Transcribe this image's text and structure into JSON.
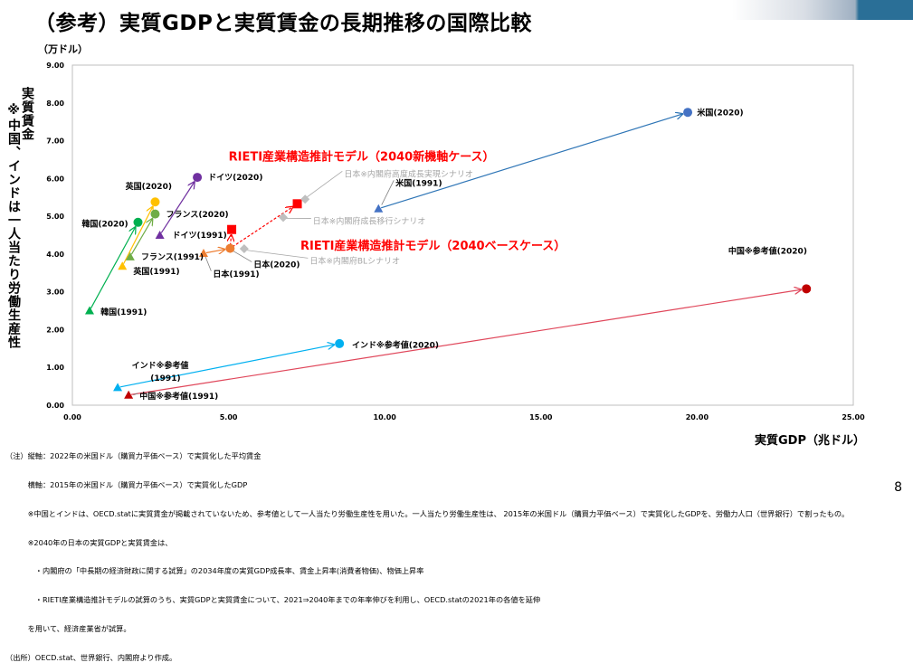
{
  "title": "（参考）実質GDPと実質賃金の長期推移の国際比較",
  "page_number": "8",
  "chart_data": {
    "type": "scatter",
    "xlabel": "実質GDP（兆ドル）",
    "ylabel_unit": "（万ドル）",
    "ylabel_vertical": [
      "実質賃金",
      "※中国、インドは一人当たり労働生産性"
    ],
    "xlim": [
      0,
      25
    ],
    "ylim": [
      0,
      9
    ],
    "xticks": [
      "0.00",
      "5.00",
      "10.00",
      "15.00",
      "20.00",
      "25.00"
    ],
    "yticks": [
      "0.00",
      "1.00",
      "2.00",
      "3.00",
      "4.00",
      "5.00",
      "6.00",
      "7.00",
      "8.00",
      "9.00"
    ],
    "grid": false,
    "points": [
      {
        "label": "米国(2020)",
        "x": 19.7,
        "y": 7.75,
        "marker": "circle",
        "color": "#4472c4"
      },
      {
        "label": "米国(1991)",
        "x": 9.8,
        "y": 5.2,
        "marker": "triangle",
        "color": "#4472c4"
      },
      {
        "label": "ドイツ(2020)",
        "x": 4.0,
        "y": 6.03,
        "marker": "circle",
        "color": "#7030a0"
      },
      {
        "label": "ドイツ(1991)",
        "x": 2.8,
        "y": 4.5,
        "marker": "triangle",
        "color": "#7030a0"
      },
      {
        "label": "英国(2020)",
        "x": 2.65,
        "y": 5.38,
        "marker": "circle",
        "color": "#ffc000"
      },
      {
        "label": "英国(1991)",
        "x": 1.6,
        "y": 3.68,
        "marker": "triangle",
        "color": "#ffc000"
      },
      {
        "label": "フランス(2020)",
        "x": 2.65,
        "y": 5.06,
        "marker": "circle",
        "color": "#70ad47"
      },
      {
        "label": "フランス(1991)",
        "x": 1.85,
        "y": 3.93,
        "marker": "triangle",
        "color": "#70ad47"
      },
      {
        "label": "韓国(2020)",
        "x": 2.1,
        "y": 4.84,
        "marker": "circle",
        "color": "#00b050"
      },
      {
        "label": "韓国(1991)",
        "x": 0.55,
        "y": 2.5,
        "marker": "triangle",
        "color": "#00b050"
      },
      {
        "label": "日本(2020)",
        "x": 5.05,
        "y": 4.15,
        "marker": "circle",
        "color": "#ed7d31"
      },
      {
        "label": "日本(1991)",
        "x": 4.2,
        "y": 4.02,
        "marker": "triangle",
        "color": "#ed7d31"
      },
      {
        "label": "中国※参考値(2020)",
        "x": 23.5,
        "y": 3.08,
        "marker": "circle",
        "color": "#c00000"
      },
      {
        "label": "中国※参考値(1991)",
        "x": 1.8,
        "y": 0.27,
        "marker": "triangle",
        "color": "#c00000"
      },
      {
        "label": "インド※参考値(2020)",
        "x": 8.55,
        "y": 1.63,
        "marker": "circle",
        "color": "#00b0f0"
      },
      {
        "label": "インド※参考値(1991)",
        "x": 1.45,
        "y": 0.47,
        "marker": "triangle",
        "color": "#00b0f0"
      },
      {
        "label": "RIETI産業構造推計モデル（2040新機軸ケース）",
        "x": 7.2,
        "y": 5.33,
        "marker": "square",
        "color": "#ff0000"
      },
      {
        "label": "RIETI産業構造推計モデル（2040ベースケース）",
        "x": 5.1,
        "y": 4.65,
        "marker": "square",
        "color": "#ff0000"
      },
      {
        "label": "日本※内閣府高度成長実現シナリオ",
        "x": 7.45,
        "y": 5.45,
        "marker": "diamond",
        "color": "#bfbfbf"
      },
      {
        "label": "日本※内閣府成長移行シナリオ",
        "x": 6.75,
        "y": 4.97,
        "marker": "diamond",
        "color": "#bfbfbf"
      },
      {
        "label": "日本※内閣府BLシナリオ",
        "x": 5.5,
        "y": 4.14,
        "marker": "diamond",
        "color": "#bfbfbf"
      }
    ],
    "arrows": [
      {
        "from": "米国(1991)",
        "to": "米国(2020)",
        "color": "#2e75b6"
      },
      {
        "from": "ドイツ(1991)",
        "to": "ドイツ(2020)",
        "color": "#7030a0"
      },
      {
        "from": "英国(1991)",
        "to": "英国(2020)",
        "color": "#ffc000"
      },
      {
        "from": "フランス(1991)",
        "to": "フランス(2020)",
        "color": "#70ad47"
      },
      {
        "from": "韓国(1991)",
        "to": "韓国(2020)",
        "color": "#00b050"
      },
      {
        "from": "日本(1991)",
        "to": "日本(2020)",
        "color": "#ed7d31"
      },
      {
        "from": "中国※参考値(1991)",
        "to": "中国※参考値(2020)",
        "color": "#e0475b"
      },
      {
        "from": "インド※参考値(1991)",
        "to": "インド※参考値(2020)",
        "color": "#00b0f0"
      },
      {
        "from": "日本(2020)",
        "to": "RIETI産業構造推計モデル（2040新機軸ケース）",
        "color": "#ff0000",
        "dashed": true
      },
      {
        "from": "日本(2020)",
        "to": "RIETI産業構造推計モデル（2040ベースケース）",
        "color": "#ff0000",
        "dashed": true
      }
    ],
    "labels": [
      {
        "text": "米国(2020)",
        "ax": 20.0,
        "ay": 7.75,
        "size": 9,
        "color": "#000000",
        "bold": true
      },
      {
        "text": "米国(1991)",
        "ax": 10.35,
        "ay": 5.88,
        "size": 9,
        "color": "#000000",
        "bold": true,
        "leader": [
          9.9,
          5.3
        ]
      },
      {
        "text": "ドイツ(2020)",
        "ax": 4.35,
        "ay": 6.03,
        "size": 9,
        "color": "#000000",
        "bold": true
      },
      {
        "text": "ドイツ(1991)",
        "ax": 3.2,
        "ay": 4.5,
        "size": 9,
        "color": "#000000",
        "bold": true
      },
      {
        "text": "英国(2020)",
        "ax": 1.7,
        "ay": 5.8,
        "size": 9,
        "color": "#000000",
        "bold": true
      },
      {
        "text": "英国(1991)",
        "ax": 1.95,
        "ay": 3.55,
        "size": 9,
        "color": "#000000",
        "bold": true
      },
      {
        "text": "フランス(2020)",
        "ax": 3.0,
        "ay": 5.06,
        "size": 9,
        "color": "#000000",
        "bold": true
      },
      {
        "text": "フランス(1991)",
        "ax": 2.2,
        "ay": 3.93,
        "size": 9,
        "color": "#000000",
        "bold": true
      },
      {
        "text": "韓国(2020)",
        "ax": 0.3,
        "ay": 4.8,
        "size": 9,
        "color": "#000000",
        "bold": true
      },
      {
        "text": "韓国(1991)",
        "ax": 0.9,
        "ay": 2.47,
        "size": 9,
        "color": "#000000",
        "bold": true
      },
      {
        "text": "日本(2020)",
        "ax": 5.8,
        "ay": 3.72,
        "size": 9,
        "color": "#000000",
        "bold": true,
        "leader": [
          5.15,
          4.08
        ]
      },
      {
        "text": "日本(1991)",
        "ax": 4.5,
        "ay": 3.48,
        "size": 9,
        "color": "#000000",
        "bold": true,
        "leader": [
          4.25,
          3.95
        ]
      },
      {
        "text": "中国※参考値(2020)",
        "ax": 21.0,
        "ay": 4.08,
        "size": 9,
        "color": "#000000",
        "bold": true
      },
      {
        "text": "中国※参考値(1991)",
        "ax": 2.15,
        "ay": 0.24,
        "size": 9,
        "color": "#000000",
        "bold": true,
        "leader": [
          1.95,
          0.27
        ]
      },
      {
        "text": "インド※参考値(2020)",
        "ax": 8.95,
        "ay": 1.6,
        "size": 9,
        "color": "#000000",
        "bold": true
      },
      {
        "text": "インド※参考値",
        "ax": 1.9,
        "ay": 1.06,
        "size": 9,
        "color": "#000000",
        "bold": true
      },
      {
        "text": "(1991)",
        "ax": 2.5,
        "ay": 0.72,
        "size": 9,
        "color": "#000000",
        "bold": true
      },
      {
        "text": "RIETI産業構造推計モデル（2040新機軸ケース）",
        "ax": 5.0,
        "ay": 6.58,
        "size": 13,
        "color": "#ff0000",
        "bold": true
      },
      {
        "text": "RIETI産業構造推計モデル（2040ベースケース）",
        "ax": 7.3,
        "ay": 4.22,
        "size": 13,
        "color": "#ff0000",
        "bold": true
      },
      {
        "text": "日本※内閣府高度成長実現シナリオ",
        "ax": 8.7,
        "ay": 6.12,
        "size": 9,
        "color": "#a6a6a6",
        "bold": false,
        "leader": [
          7.5,
          5.5
        ]
      },
      {
        "text": "日本※内閣府成長移行シナリオ",
        "ax": 7.7,
        "ay": 4.87,
        "size": 9,
        "color": "#a6a6a6",
        "bold": false,
        "leader": [
          6.85,
          4.94
        ]
      },
      {
        "text": "日本※内閣府BLシナリオ",
        "ax": 7.6,
        "ay": 3.82,
        "size": 9,
        "color": "#a6a6a6",
        "bold": false,
        "leader": [
          5.6,
          4.1
        ]
      }
    ]
  },
  "notes": [
    "（注）縦軸：2022年の米国ドル（購買力平価ベース）で実質化した平均賃金",
    "　　　横軸：2015年の米国ドル（購買力平価ベース）で実質化したGDP",
    "　　　※中国とインドは、OECD.statに実質賃金が掲載されていないため、参考値として一人当たり労働生産性を用いた。一人当たり労働生産性は、 2015年の米国ドル（購買力平価ベース）で実質化したGDPを、労働力人口（世界銀行）で割ったもの。",
    "　　　※2040年の日本の実質GDPと実質賃金は、",
    "　　　　・内閣府の「中長期の経済財政に関する試算」の2034年度の実質GDP成長率、賃金上昇率(消費者物価)、物価上昇率",
    "　　　　・RIETI産業構造推計モデルの試算のうち、実質GDPと実質賃金について、2021⇒2040年までの年率伸びを利用し、OECD.statの2021年の各値を延伸",
    "　　　を用いて、経済産業省が試算。",
    "（出所）OECD.stat、世界銀行、内閣府より作成。"
  ]
}
